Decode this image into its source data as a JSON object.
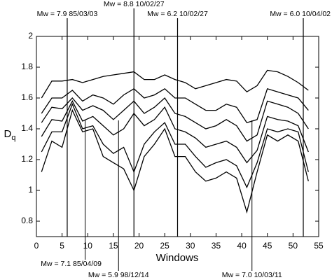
{
  "chart_data": {
    "type": "line",
    "x_label": "Windows",
    "y_label": "D",
    "y_label_subscript": "q",
    "color": "#000000",
    "x": [
      1,
      3,
      5,
      7,
      9,
      11,
      13,
      15,
      17,
      19,
      21,
      23,
      25,
      27,
      29,
      31,
      33,
      35,
      37,
      39,
      41,
      43,
      45,
      47,
      49,
      51,
      53
    ],
    "series": [
      {
        "values": [
          1.6,
          1.71,
          1.71,
          1.72,
          1.7,
          1.72,
          1.74,
          1.75,
          1.76,
          1.77,
          1.72,
          1.72,
          1.75,
          1.72,
          1.7,
          1.66,
          1.68,
          1.7,
          1.72,
          1.71,
          1.64,
          1.68,
          1.78,
          1.77,
          1.74,
          1.7,
          1.65
        ]
      },
      {
        "values": [
          1.5,
          1.6,
          1.6,
          1.65,
          1.58,
          1.62,
          1.6,
          1.56,
          1.62,
          1.66,
          1.6,
          1.62,
          1.66,
          1.6,
          1.6,
          1.56,
          1.52,
          1.52,
          1.56,
          1.54,
          1.44,
          1.46,
          1.66,
          1.64,
          1.62,
          1.6,
          1.52
        ]
      },
      {
        "values": [
          1.44,
          1.54,
          1.53,
          1.6,
          1.52,
          1.55,
          1.52,
          1.46,
          1.52,
          1.58,
          1.5,
          1.54,
          1.6,
          1.5,
          1.48,
          1.44,
          1.4,
          1.42,
          1.46,
          1.42,
          1.32,
          1.36,
          1.58,
          1.56,
          1.54,
          1.5,
          1.4
        ]
      },
      {
        "values": [
          1.35,
          1.46,
          1.45,
          1.58,
          1.45,
          1.48,
          1.42,
          1.36,
          1.4,
          1.5,
          1.42,
          1.46,
          1.54,
          1.4,
          1.38,
          1.34,
          1.28,
          1.3,
          1.32,
          1.28,
          1.18,
          1.26,
          1.48,
          1.46,
          1.45,
          1.42,
          1.25
        ]
      },
      {
        "values": [
          1.25,
          1.38,
          1.38,
          1.56,
          1.4,
          1.42,
          1.3,
          1.24,
          1.28,
          1.12,
          1.3,
          1.38,
          1.44,
          1.3,
          1.3,
          1.22,
          1.15,
          1.18,
          1.2,
          1.16,
          1.02,
          1.18,
          1.4,
          1.38,
          1.4,
          1.38,
          1.12
        ]
      },
      {
        "values": [
          1.12,
          1.32,
          1.28,
          1.52,
          1.38,
          1.4,
          1.22,
          1.18,
          1.14,
          1.0,
          1.22,
          1.3,
          1.4,
          1.22,
          1.22,
          1.12,
          1.06,
          1.08,
          1.12,
          1.08,
          0.86,
          1.12,
          1.36,
          1.32,
          1.36,
          1.32,
          1.06
        ]
      }
    ],
    "top_annotations": [
      {
        "x": 6,
        "label": "Mw = 7.9 85/03/03"
      },
      {
        "x": 19,
        "label": "Mw = 8.8 10/02/27"
      },
      {
        "x": 27.5,
        "label": "Mw = 6.2 10/02/27"
      },
      {
        "x": 52,
        "label": "Mw = 6.0 10/04/02"
      }
    ],
    "bottom_annotations": [
      {
        "x": 9.5,
        "label": "Mw = 7.1 85/04/09"
      },
      {
        "x": 16,
        "label": "Mw = 5.9 98/12/14"
      },
      {
        "x": 42,
        "label": "Mw = 7.0 10/03/11"
      }
    ],
    "xlim": [
      0,
      55
    ],
    "xticks": [
      0,
      5,
      10,
      15,
      20,
      25,
      30,
      35,
      40,
      45,
      50,
      55
    ],
    "ylim": [
      0.7,
      2
    ],
    "yticks": [
      0.8,
      1,
      1.2,
      1.4,
      1.6,
      1.8,
      2
    ]
  }
}
